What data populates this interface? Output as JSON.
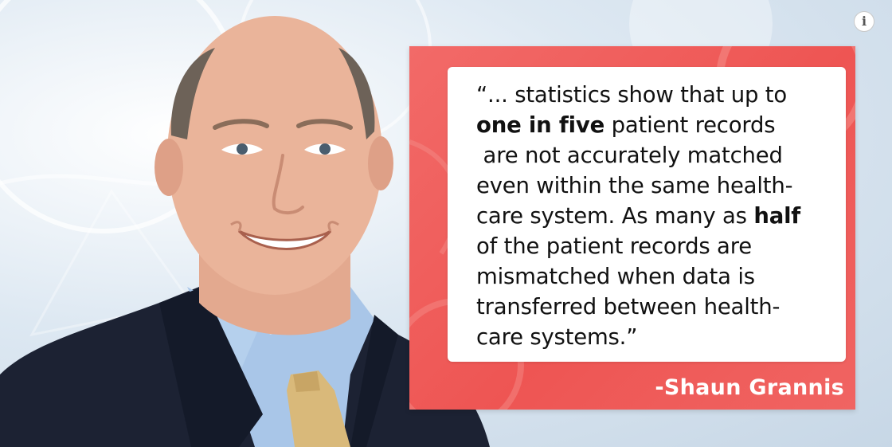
{
  "quote": {
    "lines": [
      {
        "prefix": "“... statistics show that up to",
        "bold": "",
        "suffix": ""
      },
      {
        "prefix": "",
        "bold": "one in five",
        "suffix": " patient records"
      },
      {
        "prefix": " are not accurately matched",
        "bold": "",
        "suffix": ""
      },
      {
        "prefix": "even within the same health-",
        "bold": "",
        "suffix": ""
      },
      {
        "prefix": "care system. As many as ",
        "bold": "half",
        "suffix": ""
      },
      {
        "prefix": "of the patient records are",
        "bold": "",
        "suffix": ""
      },
      {
        "prefix": "mismatched when data is",
        "bold": "",
        "suffix": ""
      },
      {
        "prefix": "transferred between health-",
        "bold": "",
        "suffix": ""
      },
      {
        "prefix": "care systems.”",
        "bold": "",
        "suffix": ""
      }
    ],
    "attribution": "-Shaun Grannis"
  },
  "colors": {
    "panel": "#ee5553",
    "card": "#ffffff",
    "attribution_text": "#ffffff",
    "suit": "#1c2233",
    "shirt": "#a9c6e8",
    "tie": "#d9b97a"
  },
  "icons": {
    "info": "info-icon"
  }
}
